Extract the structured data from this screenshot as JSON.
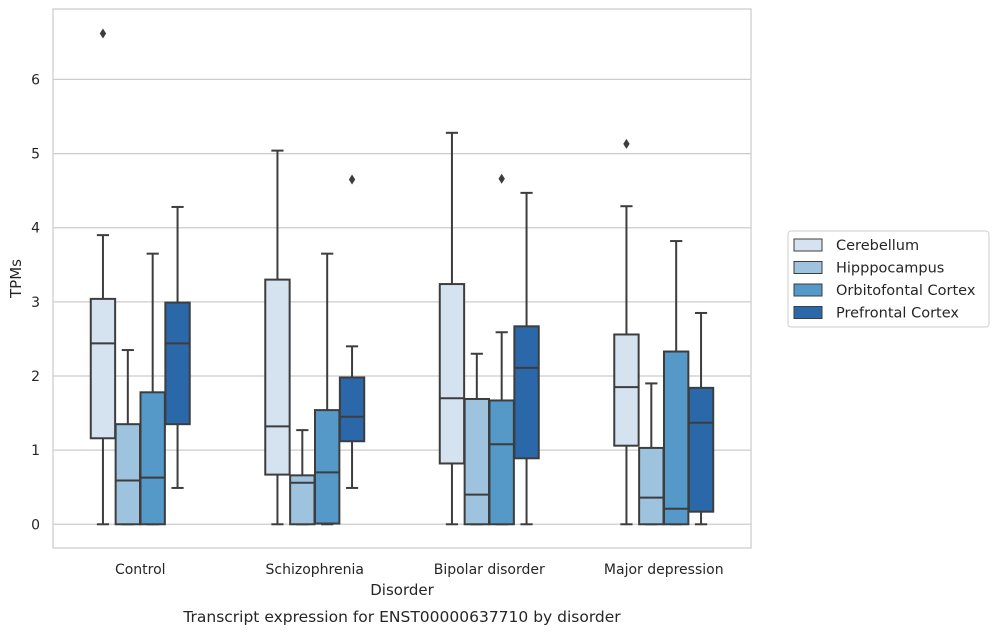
{
  "chart_data": {
    "type": "box",
    "caption": "Transcript expression for ENST00000637710 by disorder",
    "xlabel": "Disorder",
    "ylabel": "TPMs",
    "ylim": [
      -0.32,
      6.95
    ],
    "yticks": [
      0,
      1,
      2,
      3,
      4,
      5,
      6
    ],
    "grid": "horizontal",
    "legend_position": "right",
    "categories": [
      "Control",
      "Schizophrenia",
      "Bipolar disorder",
      "Major depression"
    ],
    "series": [
      {
        "name": "Cerebellum",
        "color": "#d5e3f1",
        "boxes": [
          {
            "whislo": 0.0,
            "q1": 1.16,
            "med": 2.44,
            "q3": 3.04,
            "whishi": 3.9,
            "fliers": [
              6.62
            ]
          },
          {
            "whislo": 0.0,
            "q1": 0.67,
            "med": 1.32,
            "q3": 3.3,
            "whishi": 5.04,
            "fliers": []
          },
          {
            "whislo": 0.0,
            "q1": 0.82,
            "med": 1.7,
            "q3": 3.24,
            "whishi": 5.28,
            "fliers": []
          },
          {
            "whislo": 0.0,
            "q1": 1.06,
            "med": 1.85,
            "q3": 2.56,
            "whishi": 4.29,
            "fliers": [
              5.13
            ]
          }
        ]
      },
      {
        "name": "Hipppocampus",
        "color": "#9dc3de",
        "boxes": [
          {
            "whislo": 0.0,
            "q1": 0.0,
            "med": 0.59,
            "q3": 1.35,
            "whishi": 2.35,
            "fliers": []
          },
          {
            "whislo": 0.0,
            "q1": 0.0,
            "med": 0.56,
            "q3": 0.66,
            "whishi": 1.27,
            "fliers": []
          },
          {
            "whislo": 0.0,
            "q1": 0.0,
            "med": 0.4,
            "q3": 1.69,
            "whishi": 2.3,
            "fliers": []
          },
          {
            "whislo": 0.0,
            "q1": 0.0,
            "med": 0.36,
            "q3": 1.03,
            "whishi": 1.9,
            "fliers": []
          }
        ]
      },
      {
        "name": "Orbitofontal Cortex",
        "color": "#5499c7",
        "boxes": [
          {
            "whislo": 0.0,
            "q1": 0.0,
            "med": 0.63,
            "q3": 1.78,
            "whishi": 3.65,
            "fliers": []
          },
          {
            "whislo": 0.0,
            "q1": 0.01,
            "med": 0.7,
            "q3": 1.54,
            "whishi": 3.65,
            "fliers": []
          },
          {
            "whislo": 0.0,
            "q1": 0.0,
            "med": 1.08,
            "q3": 1.67,
            "whishi": 2.59,
            "fliers": [
              4.66
            ]
          },
          {
            "whislo": 0.0,
            "q1": 0.0,
            "med": 0.21,
            "q3": 2.33,
            "whishi": 3.82,
            "fliers": []
          }
        ]
      },
      {
        "name": "Prefrontal Cortex",
        "color": "#2a68aa",
        "boxes": [
          {
            "whislo": 0.49,
            "q1": 1.35,
            "med": 2.44,
            "q3": 2.99,
            "whishi": 4.28,
            "fliers": []
          },
          {
            "whislo": 0.49,
            "q1": 1.12,
            "med": 1.45,
            "q3": 1.98,
            "whishi": 2.4,
            "fliers": [
              4.65
            ]
          },
          {
            "whislo": 0.0,
            "q1": 0.89,
            "med": 2.11,
            "q3": 2.67,
            "whishi": 4.47,
            "fliers": []
          },
          {
            "whislo": 0.0,
            "q1": 0.17,
            "med": 1.37,
            "q3": 1.84,
            "whishi": 2.85,
            "fliers": []
          }
        ]
      }
    ]
  }
}
